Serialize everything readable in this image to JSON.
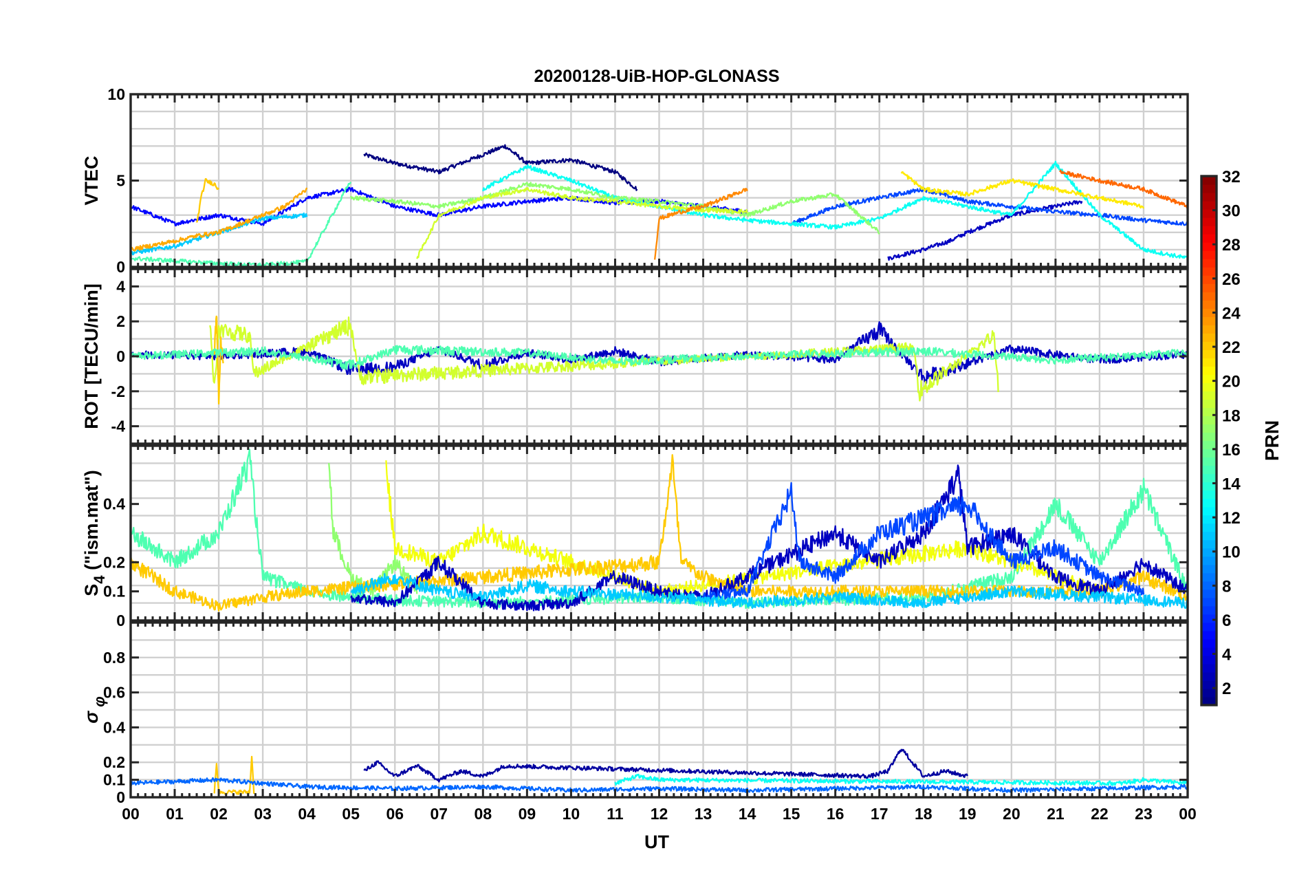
{
  "chart_data": {
    "title": "20200128-UiB-HOP-GLONASS",
    "type": "line",
    "xlabel": "UT",
    "x_tick_labels": [
      "00",
      "01",
      "02",
      "03",
      "04",
      "05",
      "06",
      "07",
      "08",
      "09",
      "10",
      "11",
      "12",
      "13",
      "14",
      "15",
      "16",
      "17",
      "18",
      "19",
      "20",
      "21",
      "22",
      "23",
      "00"
    ],
    "xlim_hours": [
      0,
      24
    ],
    "colorbar": {
      "label": "PRN",
      "ticks": [
        "2",
        "4",
        "6",
        "8",
        "10",
        "12",
        "14",
        "16",
        "18",
        "20",
        "22",
        "24",
        "26",
        "28",
        "30",
        "32"
      ],
      "range": [
        1,
        32
      ],
      "colormap": "jet"
    },
    "panels": [
      {
        "ylabel": "VTEC",
        "ylim": [
          0,
          10
        ],
        "yticks": [
          0,
          5,
          10
        ],
        "grid": true,
        "series": [
          {
            "prn": 1,
            "x": [
              5.3,
              6.0,
              7.0,
              8.0,
              8.5,
              9.0,
              10.0,
              11.0,
              11.5
            ],
            "y": [
              6.5,
              6.0,
              5.5,
              6.5,
              7.0,
              6.0,
              6.2,
              5.5,
              4.5
            ]
          },
          {
            "prn": 3,
            "x": [
              17.2,
              18.0,
              18.6,
              19.0,
              19.5,
              20.0,
              21.0,
              21.6
            ],
            "y": [
              0.5,
              1.0,
              1.5,
              2.0,
              2.5,
              3.0,
              3.5,
              3.8
            ]
          },
          {
            "prn": 5,
            "x": [
              0.0,
              1.0,
              2.0,
              3.0,
              4.0,
              5.0,
              6.0,
              7.0,
              8.0,
              9.0,
              10.0,
              11.0,
              12.0,
              13.0,
              14.0
            ],
            "y": [
              3.5,
              2.5,
              3.0,
              2.5,
              4.0,
              4.5,
              3.5,
              3.0,
              3.5,
              3.8,
              4.0,
              3.7,
              3.8,
              3.5,
              3.2
            ]
          },
          {
            "prn": 7,
            "x": [
              15.0,
              16.0,
              17.0,
              18.0,
              19.0,
              20.0,
              21.0,
              22.0,
              23.0,
              24.0
            ],
            "y": [
              2.5,
              3.5,
              4.0,
              4.5,
              3.8,
              3.5,
              3.2,
              3.0,
              2.7,
              2.5
            ]
          },
          {
            "prn": 11,
            "x": [
              0.0,
              1.0,
              2.0,
              3.0,
              4.0
            ],
            "y": [
              0.8,
              1.2,
              2.0,
              2.8,
              3.0
            ]
          },
          {
            "prn": 13,
            "x": [
              8.0,
              9.0,
              10.0,
              11.0,
              12.0,
              13.0,
              14.0,
              15.0,
              16.0,
              17.0,
              18.0,
              19.0,
              20.0,
              21.0,
              22.0,
              23.0,
              24.0
            ],
            "y": [
              4.5,
              5.8,
              5.0,
              4.0,
              3.5,
              3.0,
              2.7,
              2.5,
              2.3,
              2.8,
              4.0,
              3.5,
              3.0,
              6.0,
              3.0,
              1.0,
              0.5
            ]
          },
          {
            "prn": 15,
            "x": [
              0.0,
              2.0,
              3.0,
              4.0,
              5.0
            ],
            "y": [
              0.5,
              0.2,
              0.1,
              0.3,
              5.0
            ]
          },
          {
            "prn": 17,
            "x": [
              5.0,
              6.0,
              7.0,
              8.0,
              9.0,
              10.0,
              11.0,
              12.0,
              13.0,
              14.0,
              15.0,
              16.0,
              17.0
            ],
            "y": [
              4.0,
              3.8,
              3.5,
              4.0,
              4.8,
              4.5,
              4.0,
              3.8,
              3.5,
              3.0,
              3.8,
              4.2,
              2.0
            ]
          },
          {
            "prn": 19,
            "x": [
              6.5,
              7.0,
              8.0,
              9.0,
              10.0,
              11.0,
              12.0,
              13.0,
              14.0
            ],
            "y": [
              0.5,
              3.0,
              4.0,
              4.5,
              4.0,
              3.8,
              3.5,
              3.3,
              3.2
            ]
          },
          {
            "prn": 21,
            "x": [
              17.5,
              18.0,
              19.0,
              20.0,
              21.0,
              22.0,
              23.0
            ],
            "y": [
              5.5,
              4.5,
              4.2,
              5.0,
              4.5,
              4.0,
              3.5
            ]
          },
          {
            "prn": 23,
            "x": [
              0.0,
              1.0,
              1.5,
              2.0,
              2.5,
              3.0,
              3.5,
              4.0
            ],
            "y": [
              1.0,
              1.5,
              1.8,
              2.0,
              2.5,
              3.0,
              3.5,
              4.5
            ]
          },
          {
            "prn": 22,
            "x": [
              1.5,
              1.6,
              1.7,
              1.9,
              2.0
            ],
            "y": [
              2.5,
              4.0,
              5.0,
              4.8,
              4.5
            ]
          },
          {
            "prn": 24,
            "x": [
              11.9,
              12.0,
              12.5,
              13.0,
              13.5,
              14.0
            ],
            "y": [
              0.5,
              2.8,
              3.2,
              3.5,
              4.0,
              4.5
            ]
          },
          {
            "prn": 25,
            "x": [
              21.1,
              22.0,
              23.0,
              24.0
            ],
            "y": [
              5.5,
              5.0,
              4.5,
              3.5
            ]
          }
        ]
      },
      {
        "ylabel": "ROT [TECU/min]",
        "ylim": [
          -5,
          5
        ],
        "yticks": [
          -4,
          -2,
          0,
          2,
          4
        ],
        "grid": true,
        "series": [
          {
            "prn": 3,
            "x": [
              0,
              2,
              4,
              5,
              6,
              7,
              8,
              9,
              10,
              11,
              12,
              14,
              16,
              17,
              18,
              20,
              22,
              24
            ],
            "y": [
              0.1,
              0.0,
              0.3,
              -0.8,
              -0.6,
              0.4,
              -0.5,
              0.2,
              -0.2,
              0.3,
              -0.3,
              0.1,
              -0.2,
              1.5,
              -1.2,
              0.4,
              -0.2,
              0.1
            ]
          },
          {
            "prn": 19,
            "x": [
              1.8,
              1.9,
              2.0,
              2.7,
              2.8,
              5.0,
              5.2,
              17.8,
              17.9,
              19.6,
              19.7
            ],
            "y": [
              2.0,
              -2.0,
              1.5,
              1.2,
              -1.0,
              1.8,
              -1.2,
              0.5,
              -2.0,
              1.2,
              -1.6
            ]
          },
          {
            "prn": 22,
            "x": [
              1.9,
              1.95,
              2.0,
              2.05,
              2.1
            ],
            "y": [
              0.2,
              2.5,
              -2.3,
              1.0,
              -0.5
            ]
          },
          {
            "prn": 15,
            "x": [
              0,
              3,
              5,
              6,
              9,
              11,
              15,
              18,
              21,
              24
            ],
            "y": [
              0.0,
              0.3,
              -0.5,
              0.4,
              0.2,
              -0.3,
              0.1,
              0.3,
              -0.2,
              0.2
            ]
          }
        ]
      },
      {
        "ylabel": "S4 (\"ism.mat\")",
        "ylim": [
          0,
          0.6
        ],
        "yticks": [
          0,
          0.1,
          0.2,
          0.4
        ],
        "ytick_labels": [
          "0",
          "0.1",
          "0.2",
          "0.4"
        ],
        "grid": true,
        "series": [
          {
            "prn": 15,
            "x": [
              0,
              1,
              2,
              2.7,
              3,
              4,
              5,
              6,
              8,
              10,
              12,
              14,
              16,
              18,
              20,
              21,
              22,
              23,
              24
            ],
            "y": [
              0.3,
              0.2,
              0.3,
              0.55,
              0.15,
              0.1,
              0.08,
              0.07,
              0.06,
              0.07,
              0.08,
              0.06,
              0.07,
              0.08,
              0.15,
              0.4,
              0.2,
              0.45,
              0.1
            ]
          },
          {
            "prn": 17,
            "x": [
              4.5,
              4.6,
              5.0,
              5.5,
              6.0,
              6.5
            ],
            "y": [
              0.56,
              0.3,
              0.15,
              0.1,
              0.2,
              0.1
            ]
          },
          {
            "prn": 20,
            "x": [
              5.8,
              6.0,
              7.0,
              8.0,
              9.0,
              10.0,
              11.0,
              12.0,
              19.0,
              20.0,
              21.0,
              22.0
            ],
            "y": [
              0.53,
              0.25,
              0.2,
              0.3,
              0.25,
              0.2,
              0.15,
              0.1,
              0.25,
              0.2,
              0.15,
              0.1
            ]
          },
          {
            "prn": 22,
            "x": [
              0,
              1,
              2,
              3,
              4,
              12.0,
              12.3,
              12.5,
              13,
              14,
              22,
              23,
              24
            ],
            "y": [
              0.2,
              0.1,
              0.05,
              0.08,
              0.1,
              0.2,
              0.54,
              0.2,
              0.15,
              0.1,
              0.1,
              0.15,
              0.08
            ]
          },
          {
            "prn": 3,
            "x": [
              5,
              6,
              7,
              8,
              9,
              10,
              11,
              12,
              13,
              16,
              17,
              18,
              18.8,
              19,
              20,
              21,
              22,
              23,
              24
            ],
            "y": [
              0.08,
              0.06,
              0.2,
              0.06,
              0.05,
              0.06,
              0.15,
              0.1,
              0.08,
              0.3,
              0.2,
              0.3,
              0.5,
              0.25,
              0.3,
              0.15,
              0.1,
              0.2,
              0.1
            ]
          },
          {
            "prn": 7,
            "x": [
              13,
              14,
              15,
              15.2,
              16,
              17,
              18,
              19,
              20,
              21,
              22,
              23
            ],
            "y": [
              0.08,
              0.1,
              0.44,
              0.2,
              0.15,
              0.3,
              0.35,
              0.4,
              0.2,
              0.25,
              0.15,
              0.1
            ]
          },
          {
            "prn": 11,
            "x": [
              5,
              6,
              7,
              8,
              9,
              10,
              12,
              14,
              16,
              18,
              20,
              22,
              24
            ],
            "y": [
              0.1,
              0.15,
              0.1,
              0.08,
              0.12,
              0.1,
              0.08,
              0.06,
              0.08,
              0.06,
              0.1,
              0.08,
              0.06
            ]
          }
        ]
      },
      {
        "ylabel": "σ φ",
        "ylim": [
          0,
          1
        ],
        "yticks": [
          0,
          0.1,
          0.2,
          0.4,
          0.6,
          0.8
        ],
        "ytick_labels": [
          "0",
          "0.1",
          "0.2",
          "0.4",
          "0.6",
          "0.8"
        ],
        "grid": true,
        "series": [
          {
            "prn": 2,
            "x": [
              5.3,
              5.6,
              6.0,
              6.5,
              7.0,
              7.5,
              8.0,
              8.5,
              16.8,
              17.2,
              17.5,
              18.0,
              18.5,
              19.0
            ],
            "y": [
              0.15,
              0.2,
              0.12,
              0.18,
              0.1,
              0.15,
              0.12,
              0.18,
              0.12,
              0.15,
              0.28,
              0.12,
              0.15,
              0.12
            ]
          },
          {
            "prn": 22,
            "x": [
              1.9,
              1.95,
              2.0,
              2.7,
              2.75,
              2.8
            ],
            "y": [
              0.03,
              0.2,
              0.03,
              0.03,
              0.23,
              0.03
            ]
          },
          {
            "prn": 13,
            "x": [
              11.0,
              11.5,
              12.0,
              22.5,
              23.0,
              24.0
            ],
            "y": [
              0.08,
              0.12,
              0.1,
              0.08,
              0.1,
              0.08
            ]
          },
          {
            "prn": 8,
            "x": [
              0,
              2,
              4,
              6,
              8,
              10,
              12,
              14,
              16,
              18,
              20,
              22,
              24
            ],
            "y": [
              0.08,
              0.1,
              0.06,
              0.05,
              0.06,
              0.04,
              0.05,
              0.04,
              0.05,
              0.06,
              0.04,
              0.05,
              0.06
            ]
          }
        ]
      }
    ]
  }
}
